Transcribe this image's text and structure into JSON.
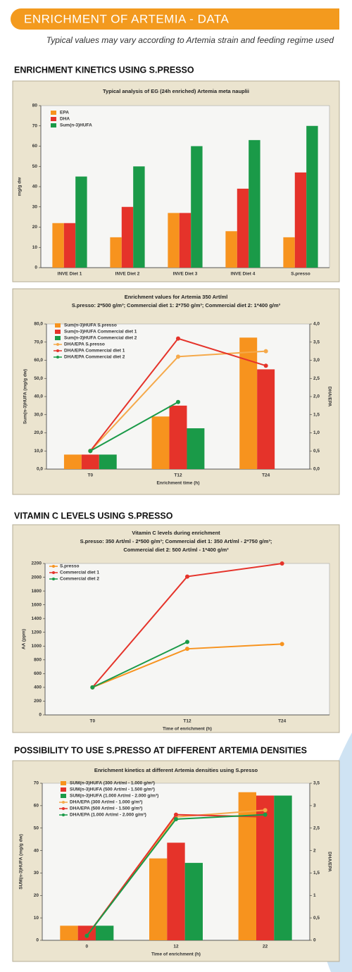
{
  "header": {
    "title": "ENRICHMENT OF ARTEMIA - DATA",
    "subtitle": "Typical values may vary according to Artemia strain and feeding regime used"
  },
  "sections": [
    "ENRICHMENT KINETICS USING S.PRESSO",
    "VITAMIN C LEVELS USING S.PRESSO",
    "POSSIBILITY TO USE S.PRESSO AT DIFFERENT ARTEMIA DENSITIES"
  ],
  "chart_data": [
    {
      "type": "bar",
      "title": "Typical analysis of EG (24h enriched) Artemia meta nauplii",
      "ylabel": "mg/g dw",
      "categories": [
        "INVE Diet 1",
        "INVE Diet 2",
        "INVE Diet 3",
        "INVE Diet 4",
        "S.presso"
      ],
      "series": [
        {
          "name": "EPA",
          "color": "#f7931e",
          "values": [
            22,
            15,
            27,
            18,
            15
          ]
        },
        {
          "name": "DHA",
          "color": "#e5332a",
          "values": [
            22,
            30,
            27,
            39,
            47
          ]
        },
        {
          "name": "Sum(n-3)HUFA",
          "color": "#1a9a48",
          "values": [
            45,
            50,
            60,
            63,
            70
          ]
        }
      ],
      "ylim": [
        0,
        80
      ],
      "yticks": [
        0,
        10,
        20,
        30,
        40,
        50,
        60,
        70,
        80
      ],
      "grid": false,
      "legend": "top-left"
    },
    {
      "type": "combo",
      "title": "Enrichment values for Artemia 350 Art/ml",
      "subtitle": [
        "S.presso: 2*500 g/m³; Commercial diet 1: 2*750 g/m³; Commercial diet 2: 1*400 g/m³"
      ],
      "ylabel": "Sum(n-3)HUFA (mg/g dw)",
      "y2label": "DHA/EPA",
      "xlabel": "Enrichment time (h)",
      "categories": [
        "T0",
        "T12",
        "T24"
      ],
      "series": [
        {
          "name": "Sum(n-3)HUFA S.presso",
          "type": "bar",
          "color": "#f7931e",
          "values": [
            8,
            29,
            72.5
          ]
        },
        {
          "name": "Sum(n-3)HUFA Commercial diet 1",
          "type": "bar",
          "color": "#e5332a",
          "values": [
            8,
            35,
            55
          ]
        },
        {
          "name": "Sum(n-3)HUFA Commercial diet 2",
          "type": "bar",
          "color": "#1a9a48",
          "values": [
            8,
            22.5,
            null
          ]
        },
        {
          "name": "DHA/EPA S.presso",
          "type": "line",
          "axis": "y2",
          "color": "#f5a94a",
          "values": [
            0.5,
            3.1,
            3.25
          ]
        },
        {
          "name": "DHA/EPA Commercial diet 1",
          "type": "line",
          "axis": "y2",
          "color": "#e5332a",
          "values": [
            0.5,
            3.6,
            2.85
          ]
        },
        {
          "name": "DHA/EPA Commercial diet 2",
          "type": "line",
          "axis": "y2",
          "color": "#1a9a48",
          "values": [
            0.5,
            1.85,
            null
          ]
        }
      ],
      "ylim": [
        0,
        80
      ],
      "yticks": [
        {
          "value": 0,
          "label": "0,0"
        },
        {
          "value": 10,
          "label": "10,0"
        },
        {
          "value": 20,
          "label": "20,0"
        },
        {
          "value": 30,
          "label": "30,0"
        },
        {
          "value": 40,
          "label": "40,0"
        },
        {
          "value": 50,
          "label": "50,0"
        },
        {
          "value": 60,
          "label": "60,0"
        },
        {
          "value": 70,
          "label": "70,0"
        },
        {
          "value": 80,
          "label": "80,0"
        }
      ],
      "y2lim": [
        0,
        4
      ],
      "y2ticks": [
        {
          "value": 0,
          "label": "0,0"
        },
        {
          "value": 0.5,
          "label": "0,5"
        },
        {
          "value": 1,
          "label": "1,0"
        },
        {
          "value": 1.5,
          "label": "1,5"
        },
        {
          "value": 2,
          "label": "2,0"
        },
        {
          "value": 2.5,
          "label": "2,5"
        },
        {
          "value": 3,
          "label": "3,0"
        },
        {
          "value": 3.5,
          "label": "3,5"
        },
        {
          "value": 4,
          "label": "4,0"
        }
      ],
      "grid": false,
      "legend": "top-left"
    },
    {
      "type": "line",
      "title": "Vitamin C levels during enrichment",
      "subtitle": [
        "S.presso: 350 Art/ml - 2*500 g/m³; Commercial diet 1: 350 Art/ml - 2*750 g/m³;",
        "Commercial diet 2: 500 Art/ml - 1*400 g/m³"
      ],
      "ylabel": "AA (ppm)",
      "xlabel": "Time of enrichment (h)",
      "categories": [
        "T0",
        "T12",
        "T24"
      ],
      "series": [
        {
          "name": "S.presso",
          "color": "#f7931e",
          "values": [
            400,
            960,
            1030
          ]
        },
        {
          "name": "Commercial diet 1",
          "color": "#e5332a",
          "values": [
            400,
            2010,
            2200
          ]
        },
        {
          "name": "Commercial diet 2",
          "color": "#1a9a48",
          "values": [
            400,
            1060,
            null
          ]
        }
      ],
      "ylim": [
        0,
        2200
      ],
      "yticks": [
        0,
        200,
        400,
        600,
        800,
        1000,
        1200,
        1400,
        1600,
        1800,
        2000,
        2200
      ],
      "grid": false,
      "legend": "top-left"
    },
    {
      "type": "combo",
      "title": "Enrichment kinetics at different Artemia densities using S.presso",
      "ylabel": "SUM(n-3)HUFA (mg/g dw)",
      "y2label": "DHA/EPA",
      "xlabel": "Time of enrichment (h)",
      "categories": [
        "0",
        "12",
        "22"
      ],
      "series": [
        {
          "name": "SUM(n-3)HUFA (300 Art/ml - 1.000 g/m³)",
          "type": "bar",
          "color": "#f7931e",
          "values": [
            6.5,
            36.5,
            66
          ]
        },
        {
          "name": "SUM(n-3)HUFA (500 Art/ml - 1.500 g/m³)",
          "type": "bar",
          "color": "#e5332a",
          "values": [
            6.5,
            43.5,
            64.5
          ]
        },
        {
          "name": "SUM(n-3)HUFA (1.000 Art/ml - 2.000 g/m³)",
          "type": "bar",
          "color": "#1a9a48",
          "values": [
            6.5,
            34.5,
            64.5
          ]
        },
        {
          "name": "DHA/EPA (300 Art/ml - 1.000 g/m³)",
          "type": "line",
          "axis": "y2",
          "color": "#f5a94a",
          "values": [
            0.1,
            2.75,
            2.9
          ]
        },
        {
          "name": "DHA/EPA (500 Art/ml - 1.500 g/m³)",
          "type": "line",
          "axis": "y2",
          "color": "#e5332a",
          "values": [
            0.1,
            2.8,
            2.75
          ]
        },
        {
          "name": "DHA/EPA (1.000 Art/ml - 2.000 g/m³)",
          "type": "line",
          "axis": "y2",
          "color": "#1a9a48",
          "values": [
            0.1,
            2.7,
            2.8
          ]
        }
      ],
      "ylim": [
        0,
        70
      ],
      "yticks": [
        0,
        10,
        20,
        30,
        40,
        50,
        60,
        70
      ],
      "y2lim": [
        0,
        3.5
      ],
      "y2ticks": [
        0,
        {
          "value": 0.5,
          "label": "0,5"
        },
        1,
        {
          "value": 1.5,
          "label": "1,5"
        },
        2,
        {
          "value": 2.5,
          "label": "2,5"
        },
        3,
        {
          "value": 3.5,
          "label": "3,5"
        }
      ],
      "grid": false,
      "legend": "top-left"
    }
  ]
}
